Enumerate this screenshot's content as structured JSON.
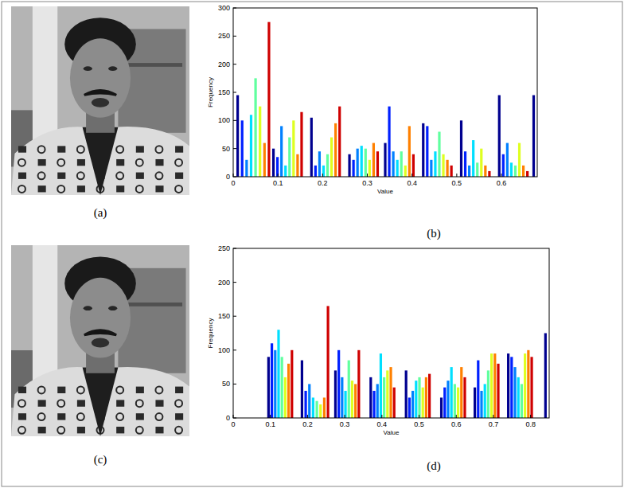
{
  "panels": {
    "a": "(a)",
    "b": "(b)",
    "c": "(c)",
    "d": "(d)"
  },
  "chart_data": [
    {
      "type": "bar",
      "x_label": "Value",
      "y_label": "Frequency",
      "x": [
        0.01,
        0.02,
        0.03,
        0.04,
        0.05,
        0.06,
        0.07,
        0.08,
        0.09,
        0.099,
        0.108,
        0.117,
        0.126,
        0.135,
        0.144,
        0.153,
        0.175,
        0.184,
        0.193,
        0.202,
        0.211,
        0.22,
        0.229,
        0.238,
        0.26,
        0.269,
        0.278,
        0.287,
        0.296,
        0.305,
        0.314,
        0.323,
        0.34,
        0.349,
        0.358,
        0.367,
        0.376,
        0.385,
        0.394,
        0.403,
        0.425,
        0.434,
        0.443,
        0.452,
        0.461,
        0.47,
        0.479,
        0.488,
        0.51,
        0.519,
        0.528,
        0.537,
        0.546,
        0.555,
        0.564,
        0.573,
        0.595,
        0.604,
        0.613,
        0.622,
        0.631,
        0.64,
        0.649,
        0.658,
        0.672
      ],
      "values": [
        145,
        100,
        30,
        110,
        175,
        125,
        60,
        275,
        50,
        35,
        90,
        20,
        70,
        100,
        40,
        115,
        105,
        20,
        45,
        20,
        40,
        70,
        95,
        125,
        40,
        30,
        50,
        55,
        50,
        30,
        60,
        45,
        60,
        125,
        45,
        30,
        45,
        20,
        90,
        40,
        95,
        90,
        30,
        45,
        80,
        40,
        30,
        20,
        100,
        45,
        20,
        65,
        25,
        50,
        20,
        10,
        145,
        40,
        60,
        25,
        20,
        60,
        20,
        10,
        145
      ],
      "colors": [
        "#00008f",
        "#0020ff",
        "#0080ff",
        "#00dfff",
        "#60ff9f",
        "#dfff20",
        "#ff8000",
        "#cf0000",
        "#00008f",
        "#0020ff",
        "#0080ff",
        "#00dfff",
        "#60ff9f",
        "#dfff20",
        "#ff8000",
        "#cf0000",
        "#00008f",
        "#0020ff",
        "#0080ff",
        "#00dfff",
        "#60ff9f",
        "#dfff20",
        "#ff8000",
        "#cf0000",
        "#00008f",
        "#0020ff",
        "#0080ff",
        "#00dfff",
        "#60ff9f",
        "#dfff20",
        "#ff8000",
        "#cf0000",
        "#00008f",
        "#0020ff",
        "#0080ff",
        "#00dfff",
        "#60ff9f",
        "#dfff20",
        "#ff8000",
        "#cf0000",
        "#00008f",
        "#0020ff",
        "#0080ff",
        "#00dfff",
        "#60ff9f",
        "#dfff20",
        "#ff8000",
        "#cf0000",
        "#00008f",
        "#0020ff",
        "#0080ff",
        "#00dfff",
        "#60ff9f",
        "#dfff20",
        "#ff8000",
        "#cf0000",
        "#00008f",
        "#0020ff",
        "#0080ff",
        "#00dfff",
        "#60ff9f",
        "#dfff20",
        "#ff8000",
        "#cf0000",
        "#00008f"
      ],
      "xlim": [
        0,
        0.68
      ],
      "ylim": [
        0,
        300
      ],
      "xticks": [
        0,
        0.1,
        0.2,
        0.3,
        0.4,
        0.5,
        0.6
      ],
      "yticks": [
        0,
        50,
        100,
        150,
        200,
        250,
        300
      ]
    },
    {
      "type": "bar",
      "x_label": "Value",
      "y_label": "Frequency",
      "x": [
        0.095,
        0.104,
        0.113,
        0.122,
        0.131,
        0.14,
        0.149,
        0.158,
        0.185,
        0.195,
        0.205,
        0.215,
        0.225,
        0.235,
        0.245,
        0.255,
        0.275,
        0.284,
        0.293,
        0.302,
        0.311,
        0.32,
        0.329,
        0.338,
        0.37,
        0.379,
        0.388,
        0.397,
        0.406,
        0.415,
        0.424,
        0.433,
        0.465,
        0.474,
        0.483,
        0.492,
        0.501,
        0.51,
        0.519,
        0.528,
        0.56,
        0.569,
        0.578,
        0.587,
        0.596,
        0.605,
        0.614,
        0.623,
        0.65,
        0.659,
        0.668,
        0.677,
        0.686,
        0.695,
        0.704,
        0.713,
        0.74,
        0.749,
        0.758,
        0.767,
        0.776,
        0.785,
        0.794,
        0.803,
        0.84
      ],
      "values": [
        90,
        110,
        100,
        130,
        90,
        60,
        80,
        100,
        85,
        40,
        50,
        30,
        25,
        20,
        30,
        165,
        70,
        100,
        60,
        40,
        85,
        55,
        50,
        100,
        60,
        40,
        50,
        95,
        60,
        70,
        75,
        45,
        70,
        30,
        40,
        55,
        60,
        45,
        60,
        65,
        30,
        45,
        55,
        75,
        50,
        45,
        75,
        60,
        45,
        85,
        40,
        50,
        70,
        95,
        95,
        80,
        95,
        90,
        75,
        60,
        50,
        95,
        100,
        90,
        125
      ],
      "colors": [
        "#00008f",
        "#0020ff",
        "#0080ff",
        "#00dfff",
        "#60ff9f",
        "#dfff20",
        "#ff8000",
        "#cf0000",
        "#00008f",
        "#0020ff",
        "#0080ff",
        "#00dfff",
        "#60ff9f",
        "#dfff20",
        "#ff8000",
        "#cf0000",
        "#00008f",
        "#0020ff",
        "#0080ff",
        "#00dfff",
        "#60ff9f",
        "#dfff20",
        "#ff8000",
        "#cf0000",
        "#00008f",
        "#0020ff",
        "#0080ff",
        "#00dfff",
        "#60ff9f",
        "#dfff20",
        "#ff8000",
        "#cf0000",
        "#00008f",
        "#0020ff",
        "#0080ff",
        "#00dfff",
        "#60ff9f",
        "#dfff20",
        "#ff8000",
        "#cf0000",
        "#00008f",
        "#0020ff",
        "#0080ff",
        "#00dfff",
        "#60ff9f",
        "#dfff20",
        "#ff8000",
        "#cf0000",
        "#00008f",
        "#0020ff",
        "#0080ff",
        "#00dfff",
        "#60ff9f",
        "#dfff20",
        "#ff8000",
        "#cf0000",
        "#00008f",
        "#0020ff",
        "#0080ff",
        "#00dfff",
        "#60ff9f",
        "#dfff20",
        "#ff8000",
        "#cf0000",
        "#00008f"
      ],
      "xlim": [
        0,
        0.85
      ],
      "ylim": [
        0,
        250
      ],
      "xticks": [
        0,
        0.1,
        0.2,
        0.3,
        0.4,
        0.5,
        0.6,
        0.7,
        0.8
      ],
      "yticks": [
        0,
        50,
        100,
        150,
        200,
        250
      ]
    }
  ]
}
